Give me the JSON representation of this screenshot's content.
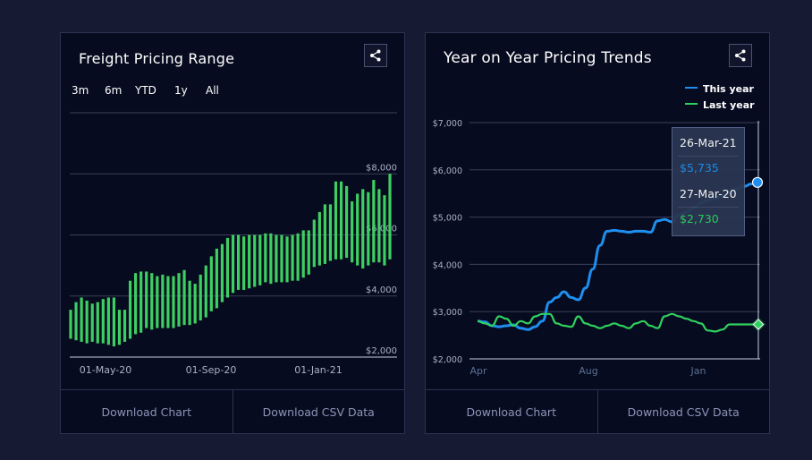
{
  "left_card": {
    "title": "Freight Pricing Range",
    "range_buttons": [
      "3m",
      "6m",
      "YTD",
      "1y",
      "All"
    ],
    "footer": {
      "download_chart": "Download Chart",
      "download_csv": "Download CSV Data"
    }
  },
  "right_card": {
    "title": "Year on Year Pricing Trends",
    "footer": {
      "download_chart": "Download Chart",
      "download_csv": "Download CSV Data"
    },
    "tooltip": {
      "date1": "26-Mar-21",
      "value1": "$5,735",
      "date2": "27-Mar-20",
      "value2": "$2,730"
    }
  },
  "colors": {
    "bar": "#3ecf62",
    "this_year": "#1e8ff0",
    "last_year": "#2fd15e",
    "grid": "#3a4058"
  },
  "chart_data": [
    {
      "type": "bar",
      "title": "Freight Pricing Range",
      "subtype": "range",
      "x_ticks": [
        "01-May-20",
        "01-Sep-20",
        "01-Jan-21"
      ],
      "y_ticks": [
        "$2,000",
        "$4,000",
        "$6,000",
        "$8,000"
      ],
      "ylim": [
        2000,
        10000
      ],
      "grid": true,
      "ranges": [
        [
          2600,
          3550
        ],
        [
          2550,
          3800
        ],
        [
          2500,
          3950
        ],
        [
          2450,
          3850
        ],
        [
          2500,
          3750
        ],
        [
          2450,
          3800
        ],
        [
          2450,
          3900
        ],
        [
          2400,
          3950
        ],
        [
          2350,
          3950
        ],
        [
          2400,
          3550
        ],
        [
          2500,
          3550
        ],
        [
          2600,
          4500
        ],
        [
          2750,
          4750
        ],
        [
          2800,
          4800
        ],
        [
          2950,
          4800
        ],
        [
          2900,
          4750
        ],
        [
          2950,
          4650
        ],
        [
          2950,
          4700
        ],
        [
          2950,
          4650
        ],
        [
          2950,
          4650
        ],
        [
          3000,
          4750
        ],
        [
          3050,
          4850
        ],
        [
          3050,
          4500
        ],
        [
          3100,
          4400
        ],
        [
          3200,
          4700
        ],
        [
          3300,
          5000
        ],
        [
          3500,
          5300
        ],
        [
          3600,
          5550
        ],
        [
          3800,
          5700
        ],
        [
          3950,
          5900
        ],
        [
          4100,
          6000
        ],
        [
          4200,
          6000
        ],
        [
          4200,
          5950
        ],
        [
          4250,
          6000
        ],
        [
          4300,
          6000
        ],
        [
          4350,
          6000
        ],
        [
          4450,
          6050
        ],
        [
          4400,
          6050
        ],
        [
          4450,
          6000
        ],
        [
          4450,
          6000
        ],
        [
          4450,
          5950
        ],
        [
          4500,
          6000
        ],
        [
          4500,
          6050
        ],
        [
          4600,
          6150
        ],
        [
          4700,
          6150
        ],
        [
          4950,
          6500
        ],
        [
          5000,
          6750
        ],
        [
          5050,
          7000
        ],
        [
          5150,
          7000
        ],
        [
          5200,
          7750
        ],
        [
          5200,
          7750
        ],
        [
          5250,
          7600
        ],
        [
          5100,
          7100
        ],
        [
          5000,
          7350
        ],
        [
          4900,
          7500
        ],
        [
          5000,
          7400
        ],
        [
          5100,
          7800
        ],
        [
          5100,
          7500
        ],
        [
          5000,
          7300
        ],
        [
          5200,
          8000
        ]
      ]
    },
    {
      "type": "line",
      "title": "Year on Year Pricing Trends",
      "x_ticks": [
        "Apr",
        "Aug",
        "Jan"
      ],
      "y_ticks": [
        "$2,000",
        "$3,000",
        "$4,000",
        "$5,000",
        "$6,000",
        "$7,000"
      ],
      "ylim": [
        2000,
        7000
      ],
      "grid": true,
      "legend_position": "top-right",
      "series": [
        {
          "name": "This year",
          "color": "#1e8ff0",
          "values": [
            2800,
            2780,
            2700,
            2680,
            2700,
            2720,
            2650,
            2620,
            2680,
            2800,
            3200,
            3300,
            3420,
            3300,
            3250,
            3500,
            3900,
            4400,
            4700,
            4720,
            4700,
            4680,
            4700,
            4700,
            4680,
            4920,
            4950,
            4900,
            5050,
            5100,
            5200,
            5300,
            5350,
            5400,
            5450,
            5500,
            5600,
            5650,
            5700,
            5735
          ]
        },
        {
          "name": "Last year",
          "color": "#2fd15e",
          "values": [
            2800,
            2750,
            2700,
            2900,
            2850,
            2700,
            2800,
            2750,
            2900,
            2950,
            2950,
            2750,
            2700,
            2680,
            2900,
            2750,
            2700,
            2650,
            2700,
            2750,
            2700,
            2650,
            2750,
            2800,
            2700,
            2650,
            2900,
            2950,
            2900,
            2850,
            2800,
            2750,
            2600,
            2580,
            2620,
            2730,
            2730,
            2730,
            2730,
            2730
          ]
        }
      ]
    }
  ]
}
